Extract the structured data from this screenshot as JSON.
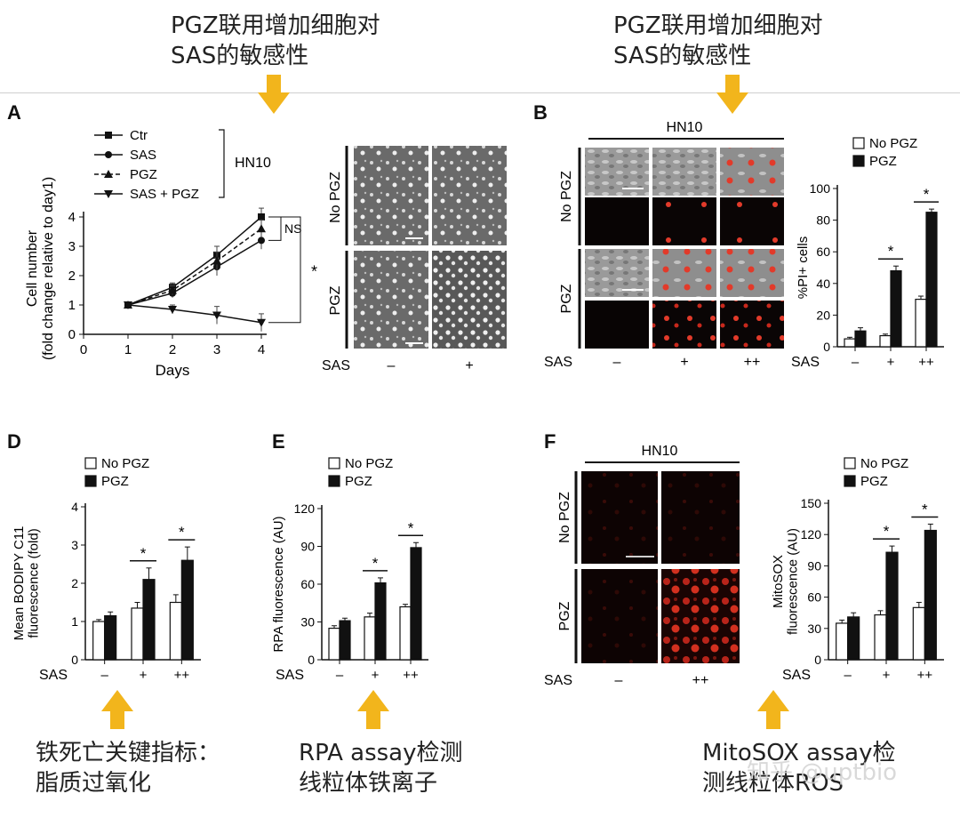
{
  "captions": {
    "top_left": "PGZ联用增加细胞对\nSAS的敏感性",
    "top_right": "PGZ联用增加细胞对\nSAS的敏感性",
    "bottom_d": "铁死亡关键指标：\n脂质过氧化",
    "bottom_e": "RPA assay检测\n线粒体铁离子",
    "bottom_f": "MitoSOX assay检\n测线粒体ROS"
  },
  "watermark": "知乎 @uptbio",
  "panels": {
    "A": {
      "letter": "A",
      "cell_line": "HN10",
      "ns_label": "NS",
      "star": "*",
      "micro_rows": [
        "No PGZ",
        "PGZ"
      ],
      "sas_label": "SAS",
      "sas_cols": [
        "–",
        "+"
      ]
    },
    "B": {
      "letter": "B",
      "cell_line": "HN10",
      "micro_rows": [
        "No PGZ",
        "PGZ"
      ],
      "sas_label": "SAS",
      "sas_cols": [
        "–",
        "+",
        "++"
      ]
    },
    "D": {
      "letter": "D"
    },
    "E": {
      "letter": "E"
    },
    "F": {
      "letter": "F",
      "cell_line": "HN10",
      "micro_rows": [
        "No PGZ",
        "PGZ"
      ],
      "sas_label": "SAS",
      "sas_cols": [
        "–",
        "++"
      ]
    }
  },
  "colors": {
    "arrow": "#f2b51c",
    "accent_red": "#e23a2a"
  },
  "chart_data": [
    {
      "id": "A",
      "type": "line",
      "xlabel": "Days",
      "ylabel": "Cell number\n(fold change relative to day1)",
      "x": [
        1,
        2,
        3,
        4
      ],
      "xlim": [
        0,
        4
      ],
      "ylim": [
        0,
        4
      ],
      "xticks": [
        0,
        1,
        2,
        3,
        4
      ],
      "yticks": [
        0,
        1,
        2,
        3,
        4
      ],
      "series": [
        {
          "name": "Ctr",
          "values": [
            1,
            1.6,
            2.7,
            4.0
          ],
          "marker": "square",
          "dash": false
        },
        {
          "name": "SAS",
          "values": [
            1,
            1.4,
            2.3,
            3.2
          ],
          "marker": "circle",
          "dash": false
        },
        {
          "name": "PGZ",
          "values": [
            1,
            1.5,
            2.5,
            3.6
          ],
          "marker": "triangle-up",
          "dash": true
        },
        {
          "name": "SAS + PGZ",
          "values": [
            1,
            0.85,
            0.65,
            0.4
          ],
          "marker": "triangle-down",
          "dash": false
        }
      ],
      "errors": [
        0,
        0.15,
        0.3,
        0.3
      ]
    },
    {
      "id": "B",
      "type": "bar",
      "ylabel": "%PI+ cells",
      "categories": [
        "–",
        "+",
        "++"
      ],
      "xaxis_label": "SAS",
      "ylim": [
        0,
        100
      ],
      "yticks": [
        0,
        20,
        40,
        60,
        80,
        100
      ],
      "series": [
        {
          "name": "No PGZ",
          "values": [
            5,
            7,
            30
          ],
          "errors": [
            1,
            1,
            2
          ]
        },
        {
          "name": "PGZ",
          "values": [
            10,
            48,
            85
          ],
          "errors": [
            2,
            3,
            2
          ]
        }
      ],
      "sig": [
        "",
        "*",
        "*"
      ]
    },
    {
      "id": "D",
      "type": "bar",
      "ylabel": "Mean BODIPY C11\nfluorescence (fold)",
      "categories": [
        "–",
        "+",
        "++"
      ],
      "xaxis_label": "SAS",
      "ylim": [
        0,
        4
      ],
      "yticks": [
        0,
        1,
        2,
        3,
        4
      ],
      "series": [
        {
          "name": "No PGZ",
          "values": [
            1.0,
            1.35,
            1.5
          ],
          "errors": [
            0.05,
            0.15,
            0.2
          ]
        },
        {
          "name": "PGZ",
          "values": [
            1.15,
            2.1,
            2.6
          ],
          "errors": [
            0.1,
            0.3,
            0.35
          ]
        }
      ],
      "sig": [
        "",
        "*",
        "*"
      ]
    },
    {
      "id": "E",
      "type": "bar",
      "ylabel": "RPA fluorescence (AU)",
      "categories": [
        "–",
        "+",
        "++"
      ],
      "xaxis_label": "SAS",
      "ylim": [
        0,
        120
      ],
      "yticks": [
        0,
        30,
        60,
        90,
        120
      ],
      "series": [
        {
          "name": "No PGZ",
          "values": [
            25,
            34,
            42
          ],
          "errors": [
            2,
            3,
            2
          ]
        },
        {
          "name": "PGZ",
          "values": [
            31,
            61,
            89
          ],
          "errors": [
            2,
            4,
            4
          ]
        }
      ],
      "sig": [
        "",
        "*",
        "*"
      ]
    },
    {
      "id": "F",
      "type": "bar",
      "ylabel": "MitoSOX\nfluorescence (AU)",
      "categories": [
        "–",
        "+",
        "++"
      ],
      "xaxis_label": "SAS",
      "ylim": [
        0,
        150
      ],
      "yticks": [
        0,
        30,
        60,
        90,
        120,
        150
      ],
      "series": [
        {
          "name": "No PGZ",
          "values": [
            35,
            43,
            50
          ],
          "errors": [
            3,
            4,
            5
          ]
        },
        {
          "name": "PGZ",
          "values": [
            41,
            103,
            124
          ],
          "errors": [
            4,
            6,
            6
          ]
        }
      ],
      "sig": [
        "",
        "*",
        "*"
      ]
    }
  ]
}
